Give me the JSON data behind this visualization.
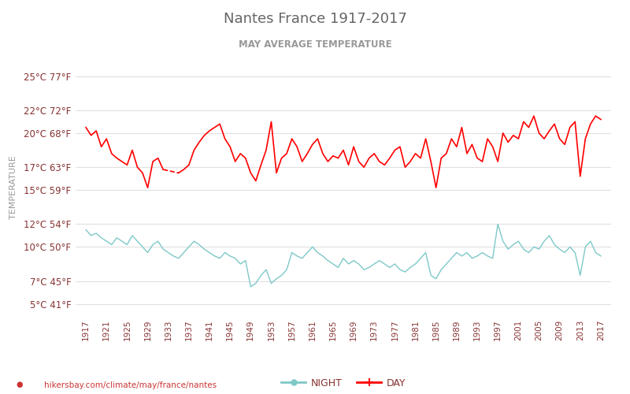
{
  "title": "Nantes France 1917-2017",
  "subtitle": "MAY AVERAGE TEMPERATURE",
  "ylabel": "TEMPERATURE",
  "watermark": "hikersbay.com/climate/may/france/nantes",
  "years": [
    1917,
    1918,
    1919,
    1920,
    1921,
    1922,
    1923,
    1924,
    1925,
    1926,
    1927,
    1928,
    1929,
    1930,
    1931,
    1932,
    1933,
    1934,
    1935,
    1936,
    1937,
    1938,
    1939,
    1940,
    1941,
    1942,
    1943,
    1944,
    1945,
    1946,
    1947,
    1948,
    1949,
    1950,
    1951,
    1952,
    1953,
    1954,
    1955,
    1956,
    1957,
    1958,
    1959,
    1960,
    1961,
    1962,
    1963,
    1964,
    1965,
    1966,
    1967,
    1968,
    1969,
    1970,
    1971,
    1972,
    1973,
    1974,
    1975,
    1976,
    1977,
    1978,
    1979,
    1980,
    1981,
    1982,
    1983,
    1984,
    1985,
    1986,
    1987,
    1988,
    1989,
    1990,
    1991,
    1992,
    1993,
    1994,
    1995,
    1996,
    1997,
    1998,
    1999,
    2000,
    2001,
    2002,
    2003,
    2004,
    2005,
    2006,
    2007,
    2008,
    2009,
    2010,
    2011,
    2012,
    2013,
    2014,
    2015,
    2016,
    2017
  ],
  "day_temps": [
    20.5,
    19.8,
    20.2,
    18.8,
    19.5,
    18.2,
    17.8,
    17.5,
    17.2,
    18.5,
    17.0,
    16.5,
    15.2,
    17.5,
    17.8,
    16.8,
    null,
    null,
    16.5,
    16.8,
    17.2,
    18.5,
    19.2,
    19.8,
    20.2,
    20.5,
    20.8,
    19.5,
    18.8,
    17.5,
    18.2,
    17.8,
    16.5,
    15.8,
    17.2,
    18.5,
    21.0,
    16.5,
    17.8,
    18.2,
    19.5,
    18.8,
    17.5,
    18.2,
    19.0,
    19.5,
    18.2,
    17.5,
    18.0,
    17.8,
    18.5,
    17.2,
    18.8,
    17.5,
    17.0,
    17.8,
    18.2,
    17.5,
    17.2,
    17.8,
    18.5,
    18.8,
    17.0,
    17.5,
    18.2,
    17.8,
    19.5,
    17.5,
    15.2,
    17.8,
    18.2,
    19.5,
    18.8,
    20.5,
    18.2,
    19.0,
    17.8,
    17.5,
    19.5,
    18.8,
    17.5,
    20.0,
    19.2,
    19.8,
    19.5,
    21.0,
    20.5,
    21.5,
    20.0,
    19.5,
    20.2,
    20.8,
    19.5,
    19.0,
    20.5,
    21.0,
    16.2,
    19.5,
    20.8,
    21.5,
    21.2,
    21.5
  ],
  "night_temps": [
    11.5,
    11.0,
    11.2,
    10.8,
    10.5,
    10.2,
    10.8,
    10.5,
    10.2,
    11.0,
    10.5,
    10.0,
    9.5,
    10.2,
    10.5,
    9.8,
    9.5,
    9.2,
    9.0,
    9.5,
    10.0,
    10.5,
    10.2,
    9.8,
    9.5,
    9.2,
    9.0,
    9.5,
    9.2,
    9.0,
    8.5,
    8.8,
    6.5,
    6.8,
    7.5,
    8.0,
    6.8,
    7.2,
    7.5,
    8.0,
    9.5,
    9.2,
    9.0,
    9.5,
    10.0,
    9.5,
    9.2,
    8.8,
    8.5,
    8.2,
    9.0,
    8.5,
    8.8,
    8.5,
    8.0,
    8.2,
    8.5,
    8.8,
    8.5,
    8.2,
    8.5,
    8.0,
    7.8,
    8.2,
    8.5,
    9.0,
    9.5,
    7.5,
    7.2,
    8.0,
    8.5,
    9.0,
    9.5,
    9.2,
    9.5,
    9.0,
    9.2,
    9.5,
    9.2,
    9.0,
    12.0,
    10.5,
    9.8,
    10.2,
    10.5,
    9.8,
    9.5,
    10.0,
    9.8,
    10.5,
    11.0,
    10.2,
    9.8,
    9.5,
    10.0,
    9.5,
    7.5,
    10.0,
    10.5,
    9.5,
    9.2
  ],
  "yticks_c": [
    5,
    7,
    10,
    12,
    15,
    17,
    20,
    22,
    25
  ],
  "yticks_f": [
    41,
    45,
    50,
    54,
    59,
    63,
    68,
    72,
    77
  ],
  "ymin": 4,
  "ymax": 26.5,
  "xmin": 1915,
  "xmax": 2019,
  "xtick_years": [
    1917,
    1921,
    1925,
    1929,
    1933,
    1937,
    1941,
    1945,
    1949,
    1953,
    1957,
    1961,
    1965,
    1969,
    1973,
    1977,
    1981,
    1985,
    1989,
    1993,
    1997,
    2001,
    2005,
    2009,
    2013,
    2017
  ],
  "day_color": "#ff0000",
  "night_color": "#7ec8c8",
  "title_color": "#666666",
  "subtitle_color": "#999999",
  "ylabel_color": "#999999",
  "tick_color": "#883333",
  "grid_color": "#e0e0e0",
  "bg_color": "#ffffff",
  "legend_night_label": "NIGHT",
  "legend_day_label": "DAY"
}
